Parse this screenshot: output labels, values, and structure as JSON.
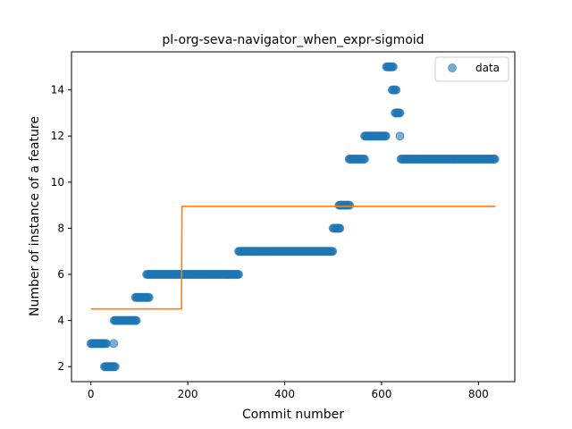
{
  "chart_data": {
    "type": "scatter",
    "title": "pl-org-seva-navigator_when_expr-sigmoid",
    "xlabel": "Commit number",
    "ylabel": "Number of instance of a feature",
    "xlim": [
      -40,
      875
    ],
    "ylim": [
      1.35,
      15.65
    ],
    "x_ticks": [
      0,
      200,
      400,
      600,
      800
    ],
    "y_ticks": [
      2,
      4,
      6,
      8,
      10,
      12,
      14
    ],
    "grid": false,
    "legend": {
      "position": "top-right",
      "entries": [
        "data"
      ]
    },
    "colors": {
      "data": "#1f77b4",
      "fit": "#ff7f0e"
    },
    "data_segments": [
      {
        "x_start": 0,
        "x_end": 32,
        "y": 3
      },
      {
        "x_start": 28,
        "x_end": 50,
        "y": 2
      },
      {
        "x_start": 47,
        "x_end": 47,
        "y": 3
      },
      {
        "x_start": 48,
        "x_end": 95,
        "y": 4
      },
      {
        "x_start": 92,
        "x_end": 120,
        "y": 5
      },
      {
        "x_start": 115,
        "x_end": 305,
        "y": 6
      },
      {
        "x_start": 305,
        "x_end": 500,
        "y": 7
      },
      {
        "x_start": 500,
        "x_end": 515,
        "y": 8
      },
      {
        "x_start": 512,
        "x_end": 535,
        "y": 9
      },
      {
        "x_start": 533,
        "x_end": 565,
        "y": 11
      },
      {
        "x_start": 565,
        "x_end": 610,
        "y": 12
      },
      {
        "x_start": 610,
        "x_end": 625,
        "y": 15
      },
      {
        "x_start": 622,
        "x_end": 630,
        "y": 14
      },
      {
        "x_start": 628,
        "x_end": 638,
        "y": 13
      },
      {
        "x_start": 638,
        "x_end": 638,
        "y": 12
      },
      {
        "x_start": 640,
        "x_end": 835,
        "y": 11
      }
    ],
    "fit_line": {
      "x": [
        0,
        187,
        188,
        835
      ],
      "y": [
        4.5,
        4.5,
        8.95,
        8.95
      ]
    }
  }
}
